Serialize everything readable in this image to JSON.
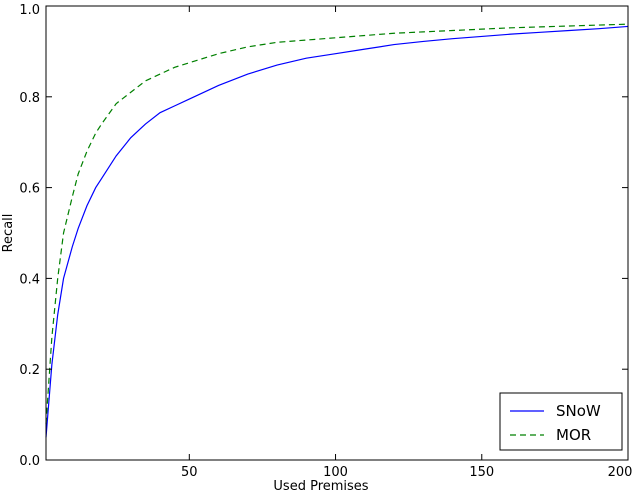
{
  "chart_data": {
    "type": "line",
    "title": "",
    "xlabel": "Used Premises",
    "ylabel": "Recall",
    "xlim": [
      1,
      200
    ],
    "ylim": [
      0.0,
      1.0
    ],
    "x_ticks": [
      50,
      100,
      150,
      200
    ],
    "x_tick_labels": [
      "50",
      "100",
      "150",
      "200"
    ],
    "y_ticks": [
      0.0,
      0.2,
      0.4,
      0.6,
      0.8,
      1.0
    ],
    "y_tick_labels": [
      "0.0",
      "0.2",
      "0.4",
      "0.6",
      "0.8",
      "1.0"
    ],
    "grid": false,
    "legend_position": "lower-right",
    "series": [
      {
        "name": "SNoW",
        "color": "#0000ff",
        "style": "solid",
        "x": [
          1,
          3,
          5,
          7,
          10,
          12,
          15,
          18,
          20,
          25,
          30,
          35,
          40,
          45,
          50,
          60,
          70,
          80,
          90,
          100,
          110,
          120,
          130,
          140,
          150,
          160,
          170,
          180,
          190,
          200
        ],
        "y": [
          0.05,
          0.21,
          0.32,
          0.4,
          0.47,
          0.51,
          0.56,
          0.6,
          0.62,
          0.67,
          0.71,
          0.74,
          0.765,
          0.78,
          0.795,
          0.825,
          0.85,
          0.87,
          0.885,
          0.895,
          0.905,
          0.915,
          0.922,
          0.928,
          0.933,
          0.938,
          0.942,
          0.946,
          0.95,
          0.955
        ]
      },
      {
        "name": "MOR",
        "color": "#008000",
        "style": "dashed",
        "x": [
          1,
          3,
          5,
          7,
          10,
          12,
          15,
          18,
          20,
          25,
          30,
          35,
          40,
          45,
          50,
          60,
          70,
          80,
          90,
          100,
          110,
          120,
          130,
          140,
          150,
          160,
          170,
          180,
          190,
          200
        ],
        "y": [
          0.08,
          0.27,
          0.4,
          0.5,
          0.58,
          0.63,
          0.68,
          0.72,
          0.74,
          0.785,
          0.81,
          0.835,
          0.85,
          0.865,
          0.875,
          0.895,
          0.91,
          0.92,
          0.925,
          0.93,
          0.935,
          0.94,
          0.943,
          0.946,
          0.949,
          0.952,
          0.954,
          0.956,
          0.958,
          0.96
        ]
      }
    ]
  }
}
